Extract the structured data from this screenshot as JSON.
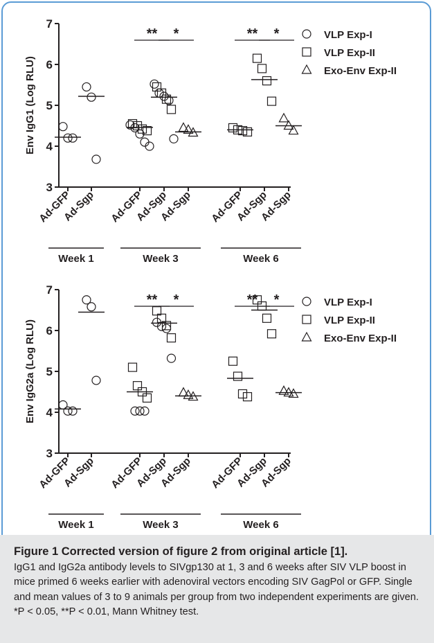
{
  "chart_data": [
    {
      "type": "scatter",
      "ylabel": "Env IgG1 (Log RLU)",
      "ylim": [
        3,
        7
      ],
      "yticks": [
        "3",
        "4",
        "5",
        "6",
        "7"
      ],
      "xticks": [
        "Ad-GFP",
        "Ad-Sgp",
        "Ad-GFP",
        "Ad-Sgp",
        "Ad-Sgp",
        "Ad-GFP",
        "Ad-Sgp",
        "Ad-Sgp"
      ],
      "weeks": [
        "Week 1",
        "Week 3",
        "Week 6"
      ],
      "significance": [
        "**",
        "*",
        "**",
        "*"
      ],
      "legend": [
        {
          "name": "VLP Exp-I",
          "marker": "circle"
        },
        {
          "name": "VLP Exp-II",
          "marker": "square"
        },
        {
          "name": "Exo-Env Exp-II",
          "marker": "triangle"
        }
      ],
      "groups": [
        {
          "week": "Week 1",
          "label": "Ad-GFP",
          "mean": 4.22,
          "circle": [
            4.48,
            4.2,
            4.2
          ],
          "square": [],
          "triangle": []
        },
        {
          "week": "Week 1",
          "label": "Ad-Sgp",
          "mean": 5.22,
          "circle": [
            5.45,
            5.2,
            3.68
          ],
          "square": [],
          "triangle": []
        },
        {
          "week": "Week 3",
          "label": "Ad-GFP",
          "mean": 4.46,
          "circle": [
            4.52,
            4.45,
            4.3,
            4.1,
            4.0
          ],
          "square": [
            4.55,
            4.5,
            4.42,
            4.38
          ],
          "triangle": []
        },
        {
          "week": "Week 3",
          "label": "Ad-Sgp",
          "mean": 5.2,
          "circle": [
            5.52,
            5.3,
            5.22,
            5.12,
            4.18
          ],
          "square": [
            5.45,
            5.3,
            5.15,
            4.9
          ],
          "triangle": []
        },
        {
          "week": "Week 3",
          "label": "Ad-Sgp",
          "mean": 4.35,
          "circle": [],
          "square": [],
          "triangle": [
            4.45,
            4.4,
            4.33
          ]
        },
        {
          "week": "Week 6",
          "label": "Ad-GFP",
          "mean": 4.4,
          "circle": [],
          "square": [
            4.45,
            4.4,
            4.38,
            4.35
          ],
          "triangle": []
        },
        {
          "week": "Week 6",
          "label": "Ad-Sgp",
          "mean": 5.63,
          "circle": [],
          "square": [
            6.15,
            5.9,
            5.6,
            5.1
          ],
          "triangle": []
        },
        {
          "week": "Week 6",
          "label": "Ad-Sgp",
          "mean": 4.5,
          "circle": [],
          "square": [],
          "triangle": [
            4.68,
            4.5,
            4.38
          ]
        }
      ]
    },
    {
      "type": "scatter",
      "ylabel": "Env IgG2a (Log RLU)",
      "ylim": [
        3,
        7
      ],
      "yticks": [
        "3",
        "4",
        "5",
        "6",
        "7"
      ],
      "xticks": [
        "Ad-GFP",
        "Ad-Sgp",
        "Ad-GFP",
        "Ad-Sgp",
        "Ad-Sgp",
        "Ad-GFP",
        "Ad-Sgp",
        "Ad-Sgp"
      ],
      "weeks": [
        "Week 1",
        "Week 3",
        "Week 6"
      ],
      "significance": [
        "**",
        "*",
        "**",
        "*"
      ],
      "legend": [
        {
          "name": "VLP Exp-I",
          "marker": "circle"
        },
        {
          "name": "VLP Exp-II",
          "marker": "square"
        },
        {
          "name": "Exo-Env Exp-II",
          "marker": "triangle"
        }
      ],
      "groups": [
        {
          "week": "Week 1",
          "label": "Ad-GFP",
          "mean": 4.08,
          "circle": [
            4.18,
            4.03,
            4.03
          ],
          "square": [],
          "triangle": []
        },
        {
          "week": "Week 1",
          "label": "Ad-Sgp",
          "mean": 6.45,
          "circle": [
            6.75,
            6.58,
            4.78
          ],
          "square": [],
          "triangle": []
        },
        {
          "week": "Week 3",
          "label": "Ad-GFP",
          "mean": 4.5,
          "circle": [
            4.03,
            4.03,
            4.03
          ],
          "square": [
            5.1,
            4.65,
            4.5,
            4.35
          ],
          "triangle": []
        },
        {
          "week": "Week 3",
          "label": "Ad-Sgp",
          "mean": 6.18,
          "circle": [
            6.2,
            6.1,
            6.05,
            5.32
          ],
          "square": [
            6.48,
            6.3,
            6.12,
            5.82
          ],
          "triangle": []
        },
        {
          "week": "Week 3",
          "label": "Ad-Sgp",
          "mean": 4.4,
          "circle": [],
          "square": [],
          "triangle": [
            4.48,
            4.42,
            4.38
          ]
        },
        {
          "week": "Week 6",
          "label": "Ad-GFP",
          "mean": 4.83,
          "circle": [],
          "square": [
            5.25,
            4.88,
            4.45,
            4.38
          ],
          "triangle": []
        },
        {
          "week": "Week 6",
          "label": "Ad-Sgp",
          "mean": 6.5,
          "circle": [],
          "square": [
            6.75,
            6.6,
            6.3,
            5.92
          ],
          "triangle": []
        },
        {
          "week": "Week 6",
          "label": "Ad-Sgp",
          "mean": 4.48,
          "circle": [],
          "square": [],
          "triangle": [
            4.52,
            4.48,
            4.45
          ]
        }
      ]
    }
  ],
  "caption": {
    "title": "Figure 1 Corrected version of figure 2 from original article [1].",
    "body": "IgG1 and IgG2a antibody levels to SIVgp130 at 1, 3 and 6 weeks after SIV VLP boost in mice primed 6 weeks earlier with adenoviral vectors encoding SIV GagPol or GFP. Single and mean values of 3 to 9 animals per group from two independent experiments are given. *P < 0.05, **P < 0.01, Mann Whitney test."
  }
}
